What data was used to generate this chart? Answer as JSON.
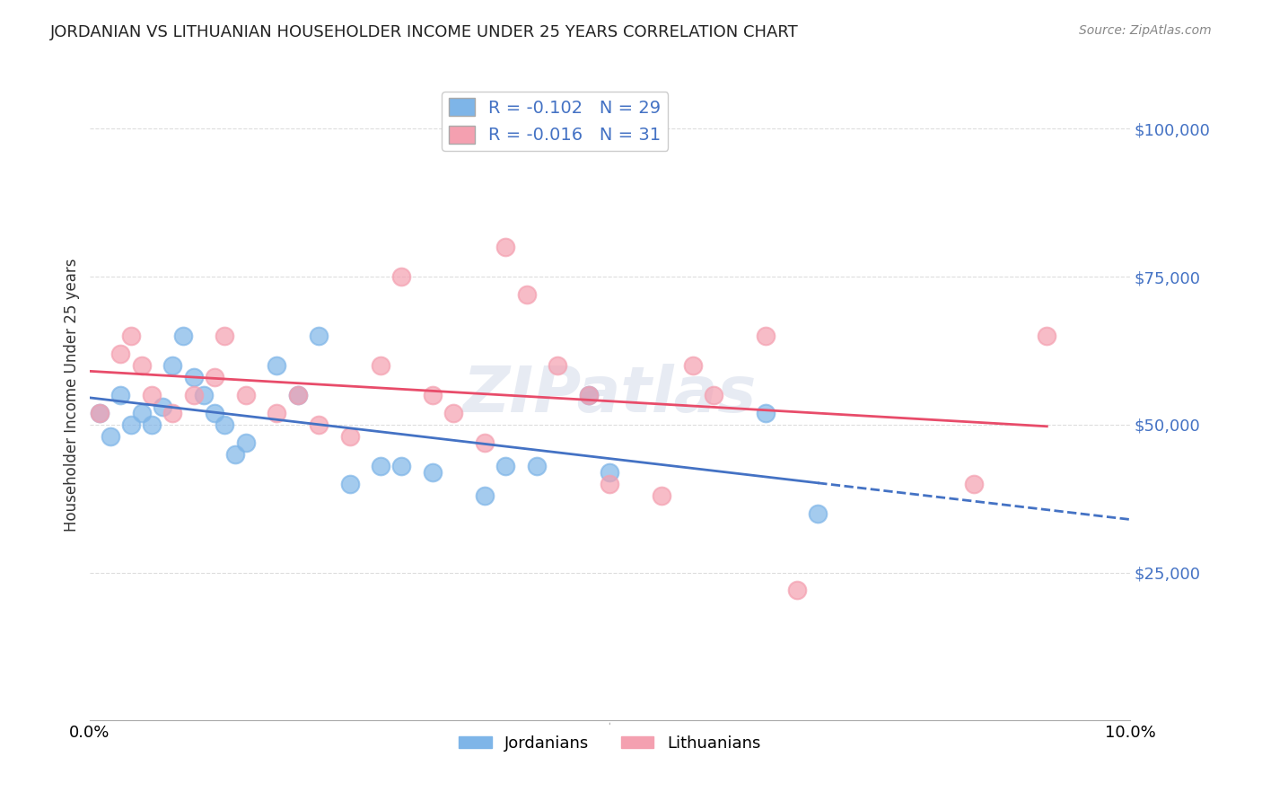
{
  "title": "JORDANIAN VS LITHUANIAN HOUSEHOLDER INCOME UNDER 25 YEARS CORRELATION CHART",
  "source": "Source: ZipAtlas.com",
  "ylabel": "Householder Income Under 25 years",
  "legend_jordanians": {
    "R": "-0.102",
    "N": "29",
    "label": "Jordanians"
  },
  "legend_lithuanians": {
    "R": "-0.016",
    "N": "31",
    "label": "Lithuanians"
  },
  "color_jordanians": "#7EB5E8",
  "color_lithuanians": "#F4A0B0",
  "color_line_jordanians": "#4472C4",
  "color_line_lithuanians": "#E84C6A",
  "color_watermark": "#D0D8E8",
  "ylim": [
    0,
    110000
  ],
  "xlim": [
    0,
    0.1
  ],
  "yticks": [
    0,
    25000,
    50000,
    75000,
    100000
  ],
  "ytick_labels": [
    "",
    "$25,000",
    "$50,000",
    "$75,000",
    "$100,000"
  ],
  "xticks": [
    0.0,
    0.02,
    0.04,
    0.06,
    0.08,
    0.1
  ],
  "xtick_labels": [
    "0.0%",
    "",
    "",
    "",
    "",
    "10.0%"
  ],
  "jordanians_x": [
    0.001,
    0.002,
    0.003,
    0.004,
    0.005,
    0.006,
    0.007,
    0.008,
    0.009,
    0.01,
    0.011,
    0.012,
    0.013,
    0.014,
    0.015,
    0.018,
    0.02,
    0.022,
    0.025,
    0.028,
    0.03,
    0.033,
    0.038,
    0.04,
    0.043,
    0.048,
    0.05,
    0.065,
    0.07
  ],
  "jordanians_y": [
    52000,
    48000,
    55000,
    50000,
    52000,
    50000,
    53000,
    60000,
    65000,
    58000,
    55000,
    52000,
    50000,
    45000,
    47000,
    60000,
    55000,
    65000,
    40000,
    43000,
    43000,
    42000,
    38000,
    43000,
    43000,
    55000,
    42000,
    52000,
    35000
  ],
  "lithuanians_x": [
    0.001,
    0.003,
    0.004,
    0.005,
    0.006,
    0.008,
    0.01,
    0.012,
    0.013,
    0.015,
    0.018,
    0.02,
    0.022,
    0.025,
    0.028,
    0.03,
    0.033,
    0.035,
    0.038,
    0.04,
    0.042,
    0.045,
    0.048,
    0.05,
    0.055,
    0.058,
    0.06,
    0.065,
    0.068,
    0.085,
    0.092
  ],
  "lithuanians_y": [
    52000,
    62000,
    65000,
    60000,
    55000,
    52000,
    55000,
    58000,
    65000,
    55000,
    52000,
    55000,
    50000,
    48000,
    60000,
    75000,
    55000,
    52000,
    47000,
    80000,
    72000,
    60000,
    55000,
    40000,
    38000,
    60000,
    55000,
    65000,
    22000,
    40000,
    65000
  ],
  "watermark": "ZIPatlas",
  "background_color": "#FFFFFF",
  "grid_color": "#DDDDDD"
}
